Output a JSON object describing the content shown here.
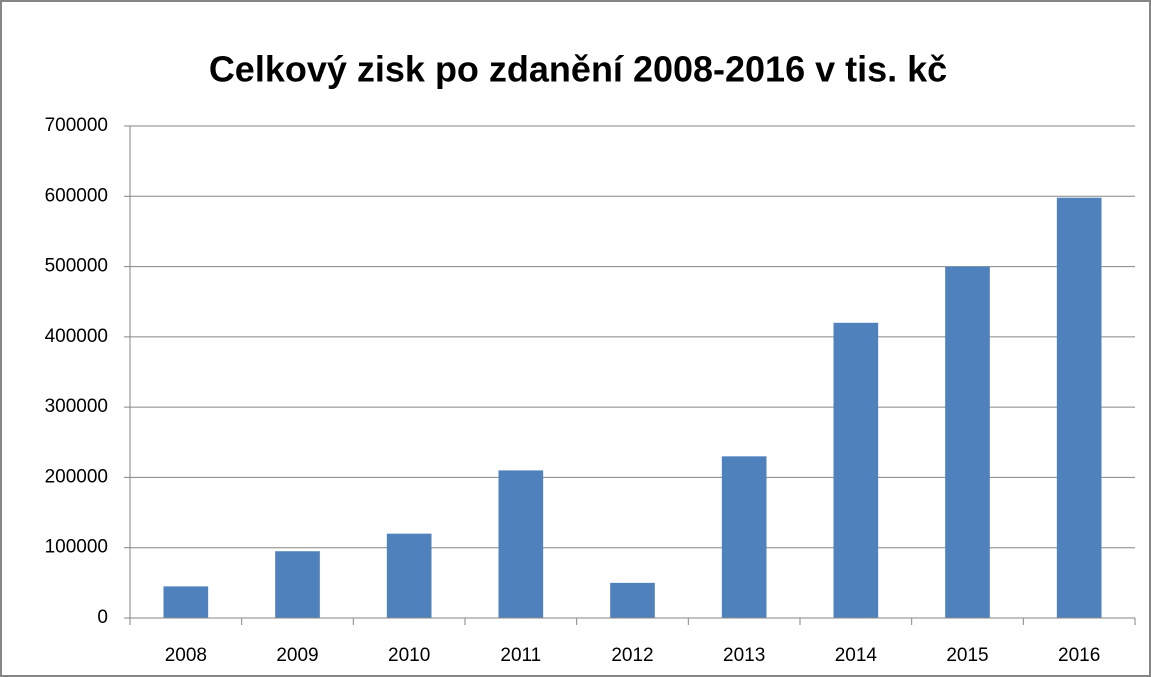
{
  "chart_data": {
    "type": "bar",
    "title": "Celkový zisk po zdanění 2008-2016 v tis. kč",
    "categories": [
      "2008",
      "2009",
      "2010",
      "2011",
      "2012",
      "2013",
      "2014",
      "2015",
      "2016"
    ],
    "values": [
      45000,
      95000,
      120000,
      210000,
      50000,
      230000,
      420000,
      500000,
      598000
    ],
    "color": "#4f81bd",
    "ylim": [
      0,
      700000
    ],
    "yticks": [
      0,
      100000,
      200000,
      300000,
      400000,
      500000,
      600000,
      700000
    ],
    "grid": true
  }
}
